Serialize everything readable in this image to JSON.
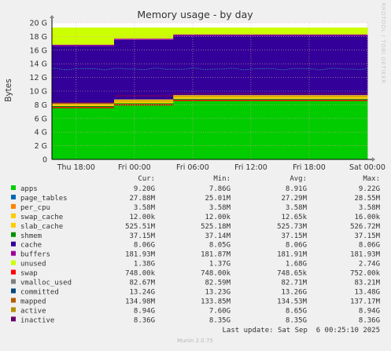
{
  "colors": {
    "background": "#f0f0f0",
    "plot_bg": "#ffffff",
    "grid": "#e6a0a0",
    "axis": "#000000"
  },
  "chart_data": {
    "type": "area",
    "title": "Memory usage - by day",
    "ylabel": "Bytes",
    "ylim": [
      0,
      20
    ],
    "y_unit": "G",
    "y_ticks": [
      "0",
      "2 G",
      "4 G",
      "6 G",
      "8 G",
      "10 G",
      "12 G",
      "14 G",
      "16 G",
      "18 G",
      "20 G"
    ],
    "x_ticks": [
      "Thu 18:00",
      "Fri 00:00",
      "Fri 06:00",
      "Fri 12:00",
      "Fri 18:00",
      "Sat 00:00"
    ],
    "x_tick_hours": [
      0,
      6,
      12,
      18,
      24,
      30
    ],
    "x_range_hours": [
      -2.5,
      30
    ],
    "grid": true,
    "step_changes": [
      {
        "at_hours": 3.9,
        "values_after": {
          "apps": 8.1,
          "slab_cache": 0.55,
          "inactive_top": 9.3,
          "cache_top": 17.5
        }
      },
      {
        "at_hours": 10.0,
        "values_after": {
          "apps": 8.75,
          "slab_cache": 0.53,
          "inactive_top": 9.6,
          "cache_top": 18.1
        }
      }
    ],
    "stack_initial": {
      "apps": 7.7,
      "page_tables": 0.03,
      "per_cpu": 0.004,
      "slab_cache": 0.5,
      "shmem": 0.04,
      "cache": 8.06,
      "buffers": 0.18,
      "unused": 2.7
    },
    "stack_final": {
      "apps": 9.2,
      "page_tables": 0.028,
      "per_cpu": 0.004,
      "slab_cache": 0.526,
      "shmem": 0.037,
      "cache": 8.06,
      "buffers": 0.182,
      "unused": 1.38
    },
    "lines": [
      {
        "name": "committed",
        "value": 13.24
      },
      {
        "name": "inactive",
        "value": 8.36
      },
      {
        "name": "active",
        "value": 8.94
      },
      {
        "name": "mapped",
        "value": 0.135
      }
    ],
    "series_colors": {
      "apps": "#00cc00",
      "page_tables": "#0066b3",
      "per_cpu": "#ff8000",
      "swap_cache": "#ffcc00",
      "slab_cache": "#ffcc00",
      "shmem": "#008f00",
      "cache": "#330099",
      "buffers": "#990099",
      "unused": "#ccff00",
      "swap": "#ff0000",
      "vmalloc_used": "#808080",
      "committed": "#00487d",
      "mapped": "#b35a00",
      "active": "#b38f00",
      "inactive": "#6b006b"
    }
  },
  "side_label": "RRDTOOL / TOBI OETIKER",
  "legend": {
    "headers": [
      "Cur:",
      "Min:",
      "Avg:",
      "Max:"
    ],
    "rows": [
      {
        "name": "apps",
        "color": "#00cc00",
        "cur": "9.20G",
        "min": "7.86G",
        "avg": "8.91G",
        "max": "9.22G"
      },
      {
        "name": "page_tables",
        "color": "#0066b3",
        "cur": "27.88M",
        "min": "25.01M",
        "avg": "27.29M",
        "max": "28.55M"
      },
      {
        "name": "per_cpu",
        "color": "#ff8000",
        "cur": "3.58M",
        "min": "3.58M",
        "avg": "3.58M",
        "max": "3.58M"
      },
      {
        "name": "swap_cache",
        "color": "#ffcc00",
        "cur": "12.00k",
        "min": "12.00k",
        "avg": "12.65k",
        "max": "16.00k"
      },
      {
        "name": "slab_cache",
        "color": "#ffcc00",
        "cur": "525.51M",
        "min": "525.18M",
        "avg": "525.73M",
        "max": "526.72M"
      },
      {
        "name": "shmem",
        "color": "#008f00",
        "cur": "37.15M",
        "min": "37.14M",
        "avg": "37.15M",
        "max": "37.15M"
      },
      {
        "name": "cache",
        "color": "#330099",
        "cur": "8.06G",
        "min": "8.05G",
        "avg": "8.06G",
        "max": "8.06G"
      },
      {
        "name": "buffers",
        "color": "#990099",
        "cur": "181.93M",
        "min": "181.87M",
        "avg": "181.91M",
        "max": "181.93M"
      },
      {
        "name": "unused",
        "color": "#ccff00",
        "cur": "1.38G",
        "min": "1.37G",
        "avg": "1.68G",
        "max": "2.74G"
      },
      {
        "name": "swap",
        "color": "#ff0000",
        "cur": "748.00k",
        "min": "748.00k",
        "avg": "748.65k",
        "max": "752.00k"
      },
      {
        "name": "vmalloc_used",
        "color": "#808080",
        "cur": "82.67M",
        "min": "82.59M",
        "avg": "82.71M",
        "max": "83.21M"
      },
      {
        "name": "committed",
        "color": "#00487d",
        "cur": "13.24G",
        "min": "13.23G",
        "avg": "13.26G",
        "max": "13.48G"
      },
      {
        "name": "mapped",
        "color": "#b35a00",
        "cur": "134.98M",
        "min": "133.85M",
        "avg": "134.53M",
        "max": "137.17M"
      },
      {
        "name": "active",
        "color": "#b38f00",
        "cur": "8.94G",
        "min": "7.60G",
        "avg": "8.65G",
        "max": "8.94G"
      },
      {
        "name": "inactive",
        "color": "#6b006b",
        "cur": "8.36G",
        "min": "8.35G",
        "avg": "8.35G",
        "max": "8.36G"
      }
    ]
  },
  "last_update": "Last update: Sat Sep  6 00:25:10 2025",
  "footer": "Munin 2.0.75"
}
